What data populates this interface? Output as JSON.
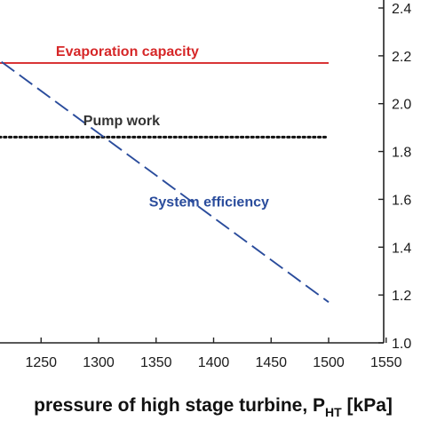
{
  "chart_data": {
    "type": "line",
    "xlabel": {
      "main": "pressure of high stage turbine, P",
      "sub": "HT",
      "unit": " [kPa]"
    },
    "x_ticks": [
      1250,
      1300,
      1350,
      1400,
      1450,
      1500,
      1550
    ],
    "xlim": [
      1200,
      1550
    ],
    "y_right_ticks": [
      "1.0",
      "1.2",
      "1.4",
      "1.6",
      "1.8",
      "2.0",
      "2.2",
      "2.4"
    ],
    "y_right_lim": [
      1.0,
      2.4
    ],
    "grid": false,
    "series": [
      {
        "name": "Evaporation capacity",
        "color": "#d62728",
        "style": "solid",
        "x": [
          1200,
          1500
        ],
        "y": [
          2.17,
          2.17
        ]
      },
      {
        "name": "Pump work",
        "color": "#111111",
        "style": "dotted",
        "x": [
          1200,
          1500
        ],
        "y": [
          1.86,
          1.86
        ]
      },
      {
        "name": "System efficiency",
        "color": "#2a4c9c",
        "style": "dashed",
        "x": [
          1200,
          1500
        ],
        "y": [
          2.23,
          1.17
        ]
      }
    ],
    "annotations": [
      {
        "text": "Evaporation capacity",
        "color": "#d62728",
        "x": 1325,
        "y": 2.2
      },
      {
        "text": "Pump work",
        "color": "#333333",
        "x": 1320,
        "y": 1.91
      },
      {
        "text": "System efficiency",
        "color": "#2a4c9c",
        "x": 1396,
        "y": 1.57
      }
    ]
  }
}
